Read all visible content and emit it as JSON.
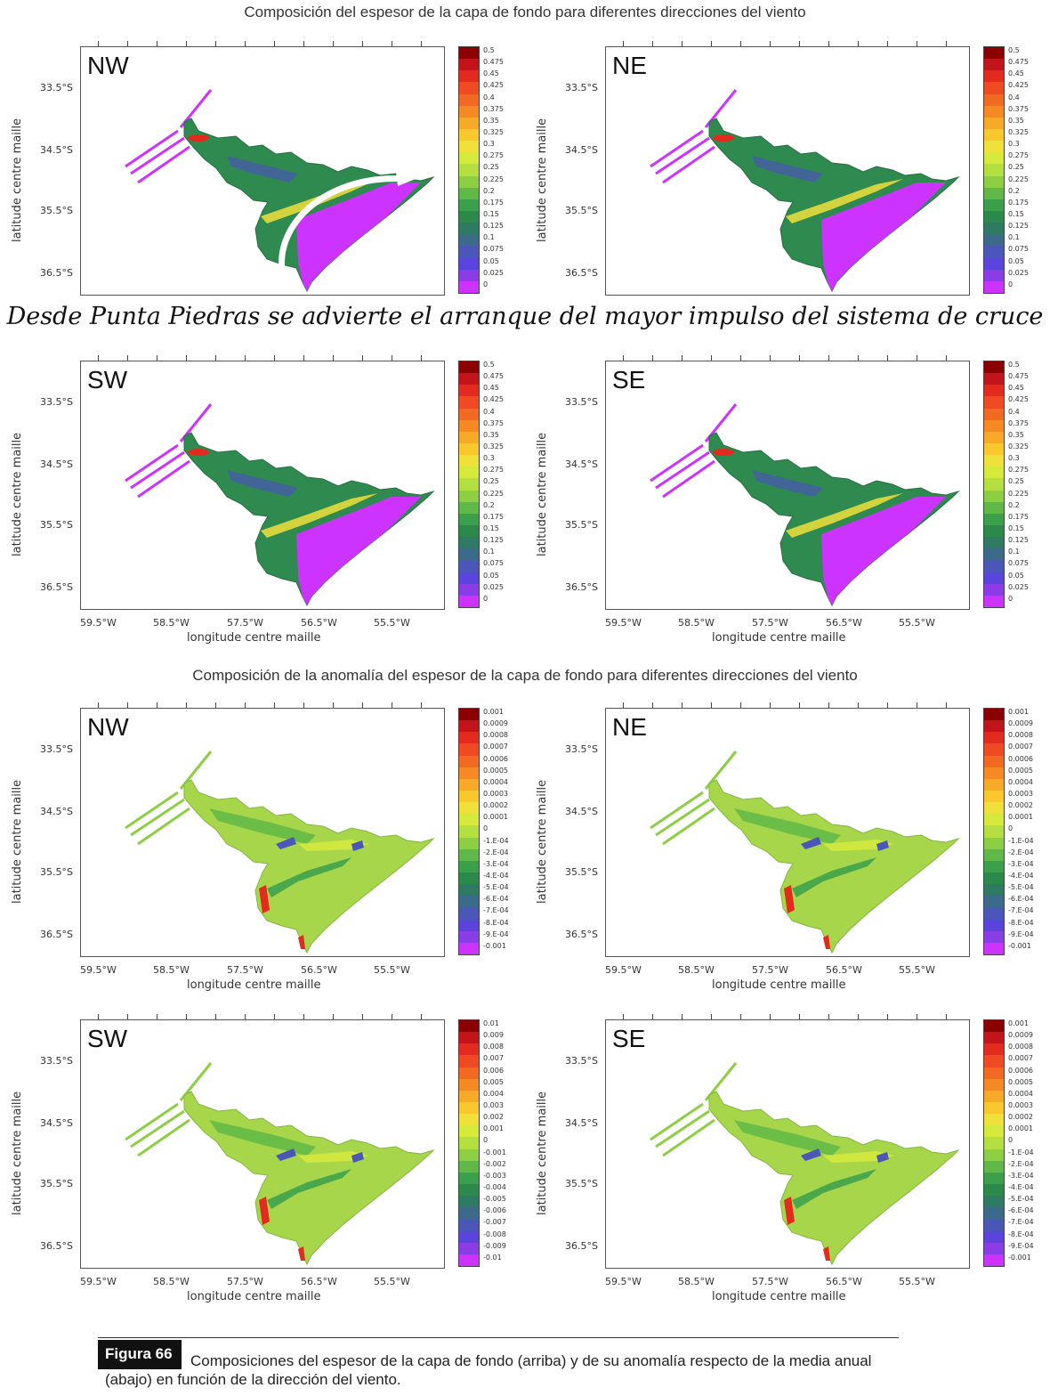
{
  "titles": {
    "thickness": "Composición del espesor de la capa de fondo para diferentes direcciones del viento",
    "anomaly": "Composición de la anomalía del espesor de la capa de fondo para diferentes direcciones del viento"
  },
  "note": "Desde Punta Piedras se advierte el arranque del mayor impulso del sistema de cruce",
  "axes": {
    "y_ticks": [
      "33.5°S",
      "34.5°S",
      "35.5°S",
      "36.5°S"
    ],
    "x_ticks": [
      "59.5°W",
      "58.5°W",
      "57.5°W",
      "56.5°W",
      "55.5°W"
    ],
    "y_title": "latitude centre maille",
    "x_title": "longitude centre maille"
  },
  "legends": {
    "thickness": [
      "0.5",
      "0.475",
      "0.45",
      "0.425",
      "0.4",
      "0.375",
      "0.35",
      "0.325",
      "0.3",
      "0.275",
      "0.25",
      "0.225",
      "0.2",
      "0.175",
      "0.15",
      "0.125",
      "0.1",
      "0.075",
      "0.05",
      "0.025",
      "0"
    ],
    "anomaly_small": [
      "0.001",
      "0.0009",
      "0.0008",
      "0.0007",
      "0.0006",
      "0.0005",
      "0.0004",
      "0.0003",
      "0.0002",
      "0.0001",
      "0",
      "-1.E-04",
      "-2.E-04",
      "-3.E-04",
      "-4.E-04",
      "-5.E-04",
      "-6.E-04",
      "-7.E-04",
      "-8.E-04",
      "-9.E-04",
      "-0.001"
    ],
    "anomaly_large": [
      "0.01",
      "0.009",
      "0.008",
      "0.007",
      "0.006",
      "0.005",
      "0.004",
      "0.003",
      "0.002",
      "0.001",
      "0",
      "-0.001",
      "-0.002",
      "-0.003",
      "-0.004",
      "-0.005",
      "-0.006",
      "-0.007",
      "-0.008",
      "-0.009",
      "-0.01"
    ],
    "colors": [
      "#8b0000",
      "#c2141a",
      "#e22b1e",
      "#f04a22",
      "#f26a22",
      "#f58a24",
      "#f7a928",
      "#f9c82d",
      "#f0e13a",
      "#d6ea3c",
      "#b3e040",
      "#8ccf43",
      "#5fb847",
      "#3aa04c",
      "#2b8a4a",
      "#2f7a63",
      "#3b6a8a",
      "#4a56b8",
      "#5a44dd",
      "#8a3ce6",
      "#cc33ff"
    ]
  },
  "panels": [
    {
      "id": "thk-nw",
      "label": "NW",
      "legend": "thickness",
      "kind": "thk"
    },
    {
      "id": "thk-ne",
      "label": "NE",
      "legend": "thickness",
      "kind": "thk"
    },
    {
      "id": "thk-sw",
      "label": "SW",
      "legend": "thickness",
      "kind": "thk"
    },
    {
      "id": "thk-se",
      "label": "SE",
      "legend": "thickness",
      "kind": "thk"
    },
    {
      "id": "ano-nw",
      "label": "NW",
      "legend": "anomaly_small",
      "kind": "ano"
    },
    {
      "id": "ano-ne",
      "label": "NE",
      "legend": "anomaly_small",
      "kind": "ano"
    },
    {
      "id": "ano-sw",
      "label": "SW",
      "legend": "anomaly_large",
      "kind": "ano"
    },
    {
      "id": "ano-se",
      "label": "SE",
      "legend": "anomaly_small",
      "kind": "ano"
    }
  ],
  "figure": {
    "badge": "Figura 66",
    "caption": "Composiciones del espesor de la capa de fondo (arriba) y de su anomalía respecto de la media anual (abajo) en función de la dirección del viento."
  }
}
